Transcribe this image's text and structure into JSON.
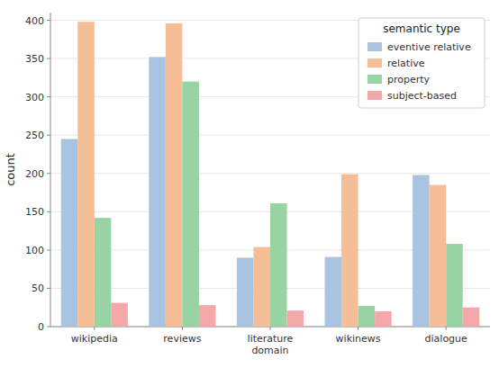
{
  "chart_data": {
    "type": "bar",
    "categories": [
      "wikipedia",
      "reviews",
      "literature\ndomain",
      "wikinews",
      "dialogue"
    ],
    "series": [
      {
        "name": "eventive relative",
        "color": "#A8C4E0",
        "values": [
          245,
          352,
          90,
          91,
          198
        ]
      },
      {
        "name": "relative",
        "color": "#F5BE96",
        "values": [
          398,
          396,
          104,
          199,
          185
        ]
      },
      {
        "name": "property",
        "color": "#98D4A3",
        "values": [
          142,
          320,
          161,
          27,
          108
        ]
      },
      {
        "name": "subject-based",
        "color": "#F5A8A8",
        "values": [
          31,
          28,
          21,
          20,
          25
        ]
      }
    ],
    "legend_title": "semantic type",
    "ylabel": "count",
    "ylim": [
      0,
      410
    ],
    "yticks": [
      0,
      50,
      100,
      150,
      200,
      250,
      300,
      350,
      400
    ],
    "grid": true,
    "legend": "upper right"
  }
}
